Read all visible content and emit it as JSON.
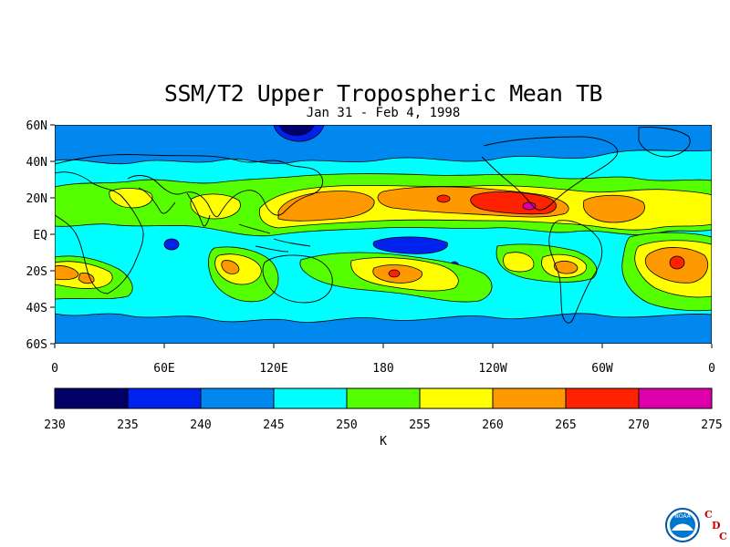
{
  "title": "SSM/T2 Upper Tropospheric Mean TB",
  "subtitle": "Jan 31 - Feb 4, 1998",
  "map": {
    "lat_labels": [
      "60N",
      "40N",
      "20N",
      "EQ",
      "20S",
      "40S",
      "60S"
    ],
    "lat_values": [
      60,
      40,
      20,
      0,
      -20,
      -40,
      -60
    ],
    "lon_labels": [
      "0",
      "60E",
      "120E",
      "180",
      "120W",
      "60W",
      "0"
    ],
    "lon_values": [
      0,
      60,
      120,
      180,
      240,
      300,
      360
    ],
    "lat_range": [
      -60,
      60
    ],
    "lon_range": [
      0,
      360
    ]
  },
  "colorbar": {
    "levels": [
      "230",
      "235",
      "240",
      "245",
      "250",
      "255",
      "260",
      "265",
      "270",
      "275"
    ],
    "colors": [
      "#000066",
      "#0022ee",
      "#0088ee",
      "#00ffff",
      "#55ff00",
      "#ffff00",
      "#ff9900",
      "#ff2200",
      "#dd00aa"
    ],
    "unit": "K"
  },
  "logo": {
    "noaa_text": "NOAA",
    "cdc_letters": [
      "C",
      "D",
      "C"
    ],
    "cdc_color": "#cc0000"
  }
}
